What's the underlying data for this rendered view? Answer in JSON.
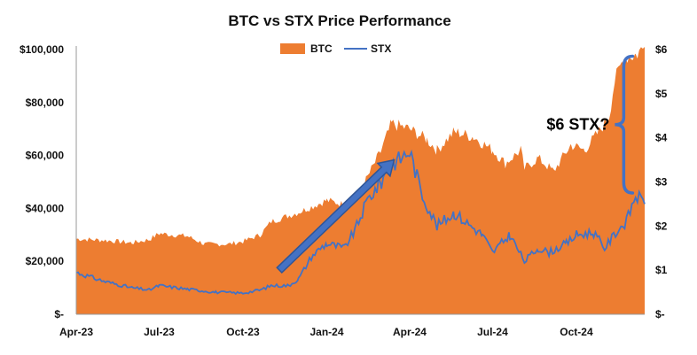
{
  "chart_data": {
    "type": "area",
    "title": "BTC vs STX Price Performance",
    "x_tick_labels": [
      "Apr-23",
      "Jul-23",
      "Oct-23",
      "Jan-24",
      "Apr-24",
      "Jul-24",
      "Oct-24"
    ],
    "x_tick_dates": [
      "2023-04-01",
      "2023-07-01",
      "2023-10-01",
      "2024-01-01",
      "2024-04-01",
      "2024-07-01",
      "2024-10-01"
    ],
    "xlim": [
      "2023-04-01",
      "2024-12-15"
    ],
    "y_left": {
      "lim": [
        0,
        100000
      ],
      "tick_labels": [
        "$-",
        "$20,000",
        "$40,000",
        "$60,000",
        "$80,000",
        "$100,000"
      ]
    },
    "y_right": {
      "lim": [
        0,
        6
      ],
      "tick_labels": [
        "$-",
        "$1",
        "$2",
        "$3",
        "$4",
        "$5",
        "$6"
      ]
    },
    "legend_position": "top-center",
    "grid": false,
    "series": [
      {
        "name": "BTC",
        "type": "area",
        "axis": "left",
        "color": "#ED7D31",
        "points": [
          [
            "2023-04-01",
            28500
          ],
          [
            "2023-05-01",
            28000
          ],
          [
            "2023-06-01",
            27000
          ],
          [
            "2023-06-20",
            28200
          ],
          [
            "2023-07-01",
            30500
          ],
          [
            "2023-08-01",
            29500
          ],
          [
            "2023-08-20",
            26500
          ],
          [
            "2023-09-15",
            26500
          ],
          [
            "2023-10-01",
            27500
          ],
          [
            "2023-10-20",
            30000
          ],
          [
            "2023-11-01",
            35000
          ],
          [
            "2023-12-01",
            38500
          ],
          [
            "2024-01-01",
            43000
          ],
          [
            "2024-01-20",
            41500
          ],
          [
            "2024-02-01",
            43000
          ],
          [
            "2024-02-15",
            52000
          ],
          [
            "2024-03-01",
            62000
          ],
          [
            "2024-03-12",
            72000
          ],
          [
            "2024-04-01",
            70000
          ],
          [
            "2024-04-20",
            66000
          ],
          [
            "2024-05-01",
            62000
          ],
          [
            "2024-05-20",
            69000
          ],
          [
            "2024-06-10",
            67000
          ],
          [
            "2024-07-01",
            62000
          ],
          [
            "2024-07-15",
            57000
          ],
          [
            "2024-08-01",
            62000
          ],
          [
            "2024-08-05",
            55000
          ],
          [
            "2024-08-20",
            59000
          ],
          [
            "2024-09-06",
            54000
          ],
          [
            "2024-09-25",
            64000
          ],
          [
            "2024-10-10",
            62000
          ],
          [
            "2024-10-28",
            70000
          ],
          [
            "2024-11-06",
            75000
          ],
          [
            "2024-11-12",
            88000
          ],
          [
            "2024-11-22",
            97000
          ],
          [
            "2024-12-05",
            98000
          ],
          [
            "2024-12-15",
            101000
          ]
        ]
      },
      {
        "name": "STX",
        "type": "line",
        "axis": "right",
        "color": "#4472C4",
        "points": [
          [
            "2023-04-01",
            0.95
          ],
          [
            "2023-05-01",
            0.75
          ],
          [
            "2023-06-01",
            0.6
          ],
          [
            "2023-06-20",
            0.55
          ],
          [
            "2023-07-01",
            0.65
          ],
          [
            "2023-08-01",
            0.57
          ],
          [
            "2023-09-01",
            0.5
          ],
          [
            "2023-10-01",
            0.48
          ],
          [
            "2023-10-20",
            0.55
          ],
          [
            "2023-11-01",
            0.65
          ],
          [
            "2023-11-20",
            0.65
          ],
          [
            "2023-12-01",
            0.8
          ],
          [
            "2023-12-15",
            1.3
          ],
          [
            "2023-12-25",
            1.5
          ],
          [
            "2024-01-01",
            1.6
          ],
          [
            "2024-01-20",
            1.5
          ],
          [
            "2024-02-01",
            1.9
          ],
          [
            "2024-02-15",
            2.6
          ],
          [
            "2024-03-01",
            3.0
          ],
          [
            "2024-03-10",
            3.4
          ],
          [
            "2024-03-20",
            3.5
          ],
          [
            "2024-04-01",
            3.7
          ],
          [
            "2024-04-15",
            2.7
          ],
          [
            "2024-05-01",
            2.0
          ],
          [
            "2024-05-20",
            2.3
          ],
          [
            "2024-06-01",
            2.1
          ],
          [
            "2024-06-20",
            1.8
          ],
          [
            "2024-07-01",
            1.4
          ],
          [
            "2024-07-20",
            1.8
          ],
          [
            "2024-08-05",
            1.2
          ],
          [
            "2024-08-20",
            1.5
          ],
          [
            "2024-09-01",
            1.4
          ],
          [
            "2024-09-20",
            1.6
          ],
          [
            "2024-10-01",
            1.8
          ],
          [
            "2024-10-20",
            1.85
          ],
          [
            "2024-11-01",
            1.5
          ],
          [
            "2024-11-15",
            1.9
          ],
          [
            "2024-11-25",
            2.1
          ],
          [
            "2024-12-05",
            2.7
          ],
          [
            "2024-12-15",
            2.5
          ]
        ]
      }
    ],
    "annotations": [
      {
        "type": "text",
        "text": "$6 STX?"
      },
      {
        "type": "arrow",
        "from": [
          "2023-11-10",
          1.0
        ],
        "to": [
          "2024-03-15",
          3.5
        ]
      },
      {
        "type": "brace",
        "date": "2024-11-22",
        "from_value": 2.75,
        "to_value": 5.85
      }
    ]
  }
}
